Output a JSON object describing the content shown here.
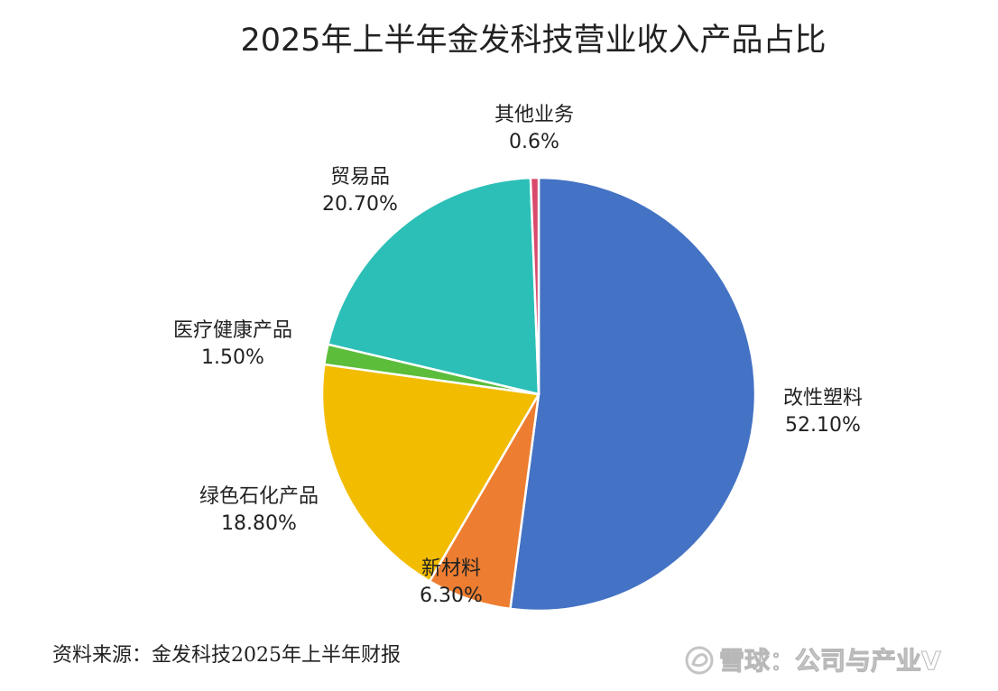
{
  "chart_data": {
    "type": "pie",
    "title": "2025年上半年金发科技营业收入产品占比",
    "slices": [
      {
        "label": "改性塑料",
        "value_label": "52.10%",
        "value": 52.1,
        "color": "#4472C4"
      },
      {
        "label": "新材料",
        "value_label": "6.30%",
        "value": 6.3,
        "color": "#ED7D31"
      },
      {
        "label": "绿色石化产品",
        "value_label": "18.80%",
        "value": 18.8,
        "color": "#F2BC00"
      },
      {
        "label": "医疗健康产品",
        "value_label": "1.50%",
        "value": 1.5,
        "color": "#5BBD3A"
      },
      {
        "label": "贸易品",
        "value_label": "20.70%",
        "value": 20.7,
        "color": "#2CBFB7"
      },
      {
        "label": "其他业务",
        "value_label": "0.6%",
        "value": 0.6,
        "color": "#D9496B"
      }
    ],
    "start": "12 o'clock",
    "direction": "clockwise"
  },
  "source": "资料来源：金发科技2025年上半年财报",
  "watermark": "雪球：公司与产业V"
}
